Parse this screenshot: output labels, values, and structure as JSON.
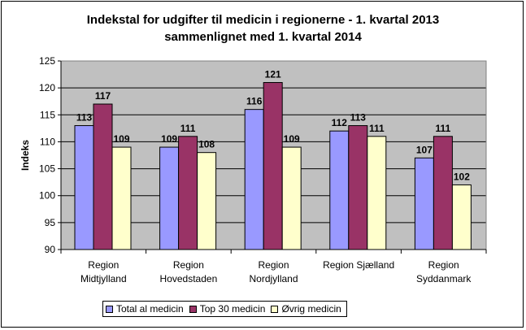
{
  "chart_data": {
    "type": "bar",
    "title_line1": "Indekstal for udgifter til medicin i regionerne - 1. kvartal 2013",
    "title_line2": "sammenlignet med 1. kvartal 2014",
    "ylabel": "Indeks",
    "xlabel": "",
    "ylim": [
      90,
      125
    ],
    "yticks": [
      90,
      95,
      100,
      105,
      110,
      115,
      120,
      125
    ],
    "grid": true,
    "categories": [
      [
        "Region",
        "Midtjylland"
      ],
      [
        "Region",
        "Hovedstaden"
      ],
      [
        "Region",
        "Nordjylland"
      ],
      [
        "Region Sjælland"
      ],
      [
        "Region",
        "Syddanmark"
      ]
    ],
    "series": [
      {
        "name": "Total al medicin",
        "color": "#9999FF",
        "values": [
          113,
          109,
          116,
          112,
          107
        ]
      },
      {
        "name": "Top 30 medicin",
        "color": "#993366",
        "values": [
          117,
          111,
          121,
          113,
          111
        ]
      },
      {
        "name": "Øvrig medicin",
        "color": "#FFFFCC",
        "values": [
          109,
          108,
          109,
          111,
          102
        ]
      }
    ],
    "legend_position": "bottom"
  }
}
